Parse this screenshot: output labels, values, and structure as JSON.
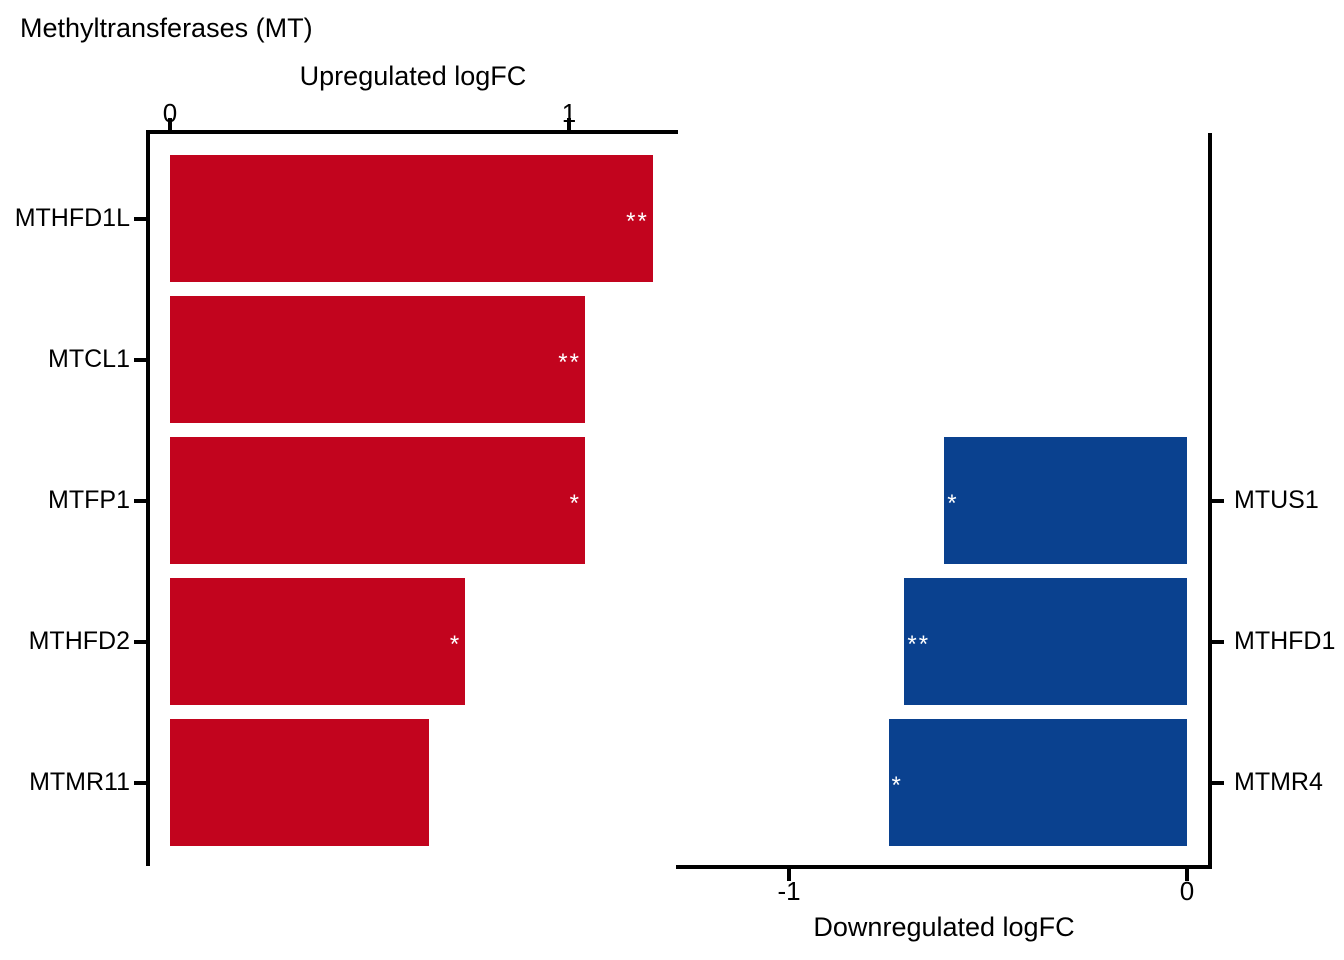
{
  "title": "Methyltransferases (MT)",
  "colors": {
    "upregulated_bar": "#C2041E",
    "downregulated_bar": "#0A418F",
    "axis": "#000000",
    "significance_star": "#FFFFFF",
    "background": "#FFFFFF"
  },
  "chart_data": [
    {
      "type": "bar",
      "orientation": "horizontal",
      "panel": "upregulated",
      "xlabel": "Upregulated logFC",
      "axis_side": "top",
      "categories": [
        "MTHFD1L",
        "MTCL1",
        "MTFP1",
        "MTHFD2",
        "MTMR11"
      ],
      "values": [
        1.21,
        1.04,
        1.04,
        0.74,
        0.65
      ],
      "significance": [
        "**",
        "**",
        "*",
        "*",
        ""
      ],
      "xticks": [
        0,
        1
      ],
      "xlim": [
        0,
        1.27
      ],
      "bar_color": "#C2041E",
      "grid": false,
      "legend": "none"
    },
    {
      "type": "bar",
      "orientation": "horizontal",
      "panel": "downregulated",
      "xlabel": "Downregulated logFC",
      "axis_side": "bottom",
      "categories": [
        "MTUS1",
        "MTHFD1",
        "MTMR4"
      ],
      "values": [
        -0.61,
        -0.71,
        -0.75
      ],
      "significance": [
        "*",
        "**",
        "*"
      ],
      "xticks": [
        -1,
        0
      ],
      "xlim": [
        -1.27,
        0
      ],
      "bar_color": "#0A418F",
      "grid": false,
      "legend": "none"
    }
  ]
}
